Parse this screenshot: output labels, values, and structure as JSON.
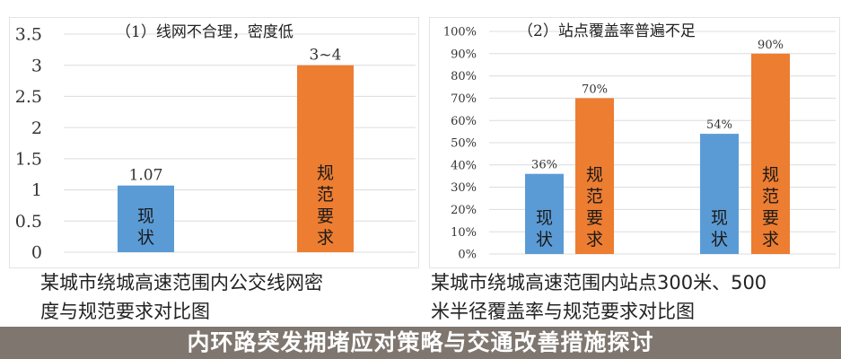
{
  "chart_data": [
    {
      "type": "bar",
      "title": "（1）线网不合理，密度低",
      "ylim": [
        0,
        3.5
      ],
      "yticks": [
        "0",
        "0.5",
        "1",
        "1.5",
        "2",
        "2.5",
        "3",
        "3.5"
      ],
      "grid": true,
      "categories": [
        "现状",
        "规范要求"
      ],
      "values": [
        1.07,
        3
      ],
      "data_labels": [
        "1.07",
        "3~4"
      ],
      "colors": [
        "#5b9bd5",
        "#ed7d31"
      ]
    },
    {
      "type": "bar",
      "title": "（2）站点覆盖率普遍不足",
      "ylim": [
        0,
        100
      ],
      "yticks": [
        "0%",
        "10%",
        "20%",
        "30%",
        "40%",
        "50%",
        "60%",
        "70%",
        "80%",
        "90%",
        "100%"
      ],
      "grid": true,
      "categories": [
        "现状",
        "规范要求",
        "现状",
        "规范要求"
      ],
      "values": [
        36,
        70,
        54,
        90
      ],
      "data_labels": [
        "36%",
        "70%",
        "54%",
        "90%"
      ],
      "colors": [
        "#5b9bd5",
        "#ed7d31",
        "#5b9bd5",
        "#ed7d31"
      ]
    }
  ],
  "captions": {
    "left": [
      "某城市绕城高速范围内公交线网密",
      "度与规范要求对比图"
    ],
    "right": [
      "某城市绕城高速范围内站点300米、500",
      "米半径覆盖率与规范要求对比图"
    ]
  },
  "banner": "内环路突发拥堵应对策略与交通改善措施探讨"
}
